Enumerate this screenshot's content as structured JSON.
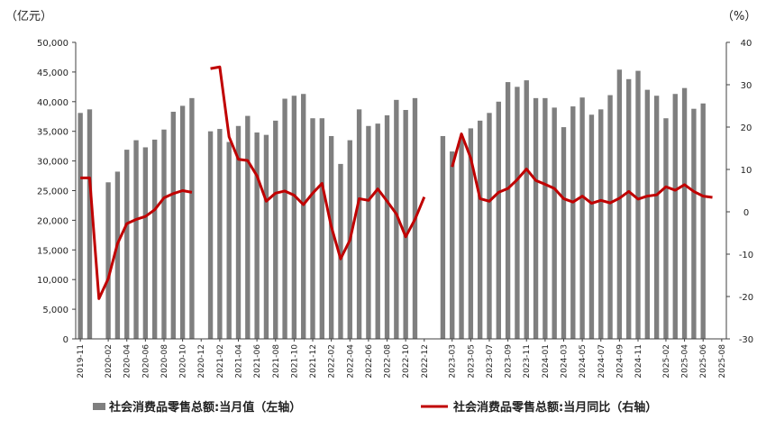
{
  "chart_data": {
    "type": "bar+line",
    "left_unit": "（亿元）",
    "right_unit": "（%）",
    "left_ylim": [
      0,
      50000
    ],
    "left_ticks": [
      "0",
      "5,000",
      "10,000",
      "15,000",
      "20,000",
      "25,000",
      "30,000",
      "35,000",
      "40,000",
      "45,000",
      "50,000"
    ],
    "left_tick_values": [
      0,
      5000,
      10000,
      15000,
      20000,
      25000,
      30000,
      35000,
      40000,
      45000,
      50000
    ],
    "right_ylim": [
      -30,
      40
    ],
    "right_ticks": [
      "-30",
      "-20",
      "-10",
      "0",
      "10",
      "20",
      "30",
      "40"
    ],
    "right_tick_values": [
      -30,
      -20,
      -10,
      0,
      10,
      20,
      30,
      40
    ],
    "categories": [
      "2019-11",
      "2019-12",
      "2020-01",
      "2020-02",
      "2020-03",
      "2020-04",
      "2020-05",
      "2020-06",
      "2020-07",
      "2020-08",
      "2020-09",
      "2020-10",
      "2020-11",
      "2020-12",
      "2021-01",
      "2021-02",
      "2021-03",
      "2021-04",
      "2021-05",
      "2021-06",
      "2021-07",
      "2021-08",
      "2021-09",
      "2021-10",
      "2021-11",
      "2021-12",
      "2022-01",
      "2022-02",
      "2022-03",
      "2022-04",
      "2022-05",
      "2022-06",
      "2022-07",
      "2022-08",
      "2022-09",
      "2022-10",
      "2022-11",
      "2022-12",
      "2023-01",
      "2023-02",
      "2023-03",
      "2023-04",
      "2023-05",
      "2023-06",
      "2023-07",
      "2023-08",
      "2023-09",
      "2023-10",
      "2023-11",
      "2023-12",
      "2024-01",
      "2024-02",
      "2024-03",
      "2024-04",
      "2024-05",
      "2024-06",
      "2024-07",
      "2024-08",
      "2024-09",
      "2024-10",
      "2024-11",
      "2024-12",
      "2025-01",
      "2025-02",
      "2025-03",
      "2025-04",
      "2025-05",
      "2025-06",
      "2025-07",
      "2025-08"
    ],
    "x_tick_labels": [
      "2019-11",
      "2020-02",
      "2020-04",
      "2020-06",
      "2020-08",
      "2020-10",
      "2020-12",
      "2021-02",
      "2021-04",
      "2021-06",
      "2021-08",
      "2021-10",
      "2021-12",
      "2022-02",
      "2022-04",
      "2022-06",
      "2022-08",
      "2022-10",
      "2022-12",
      "2023-03",
      "2023-05",
      "2023-07",
      "2023-09",
      "2023-11",
      "2024-01",
      "2024-03",
      "2024-05",
      "2024-07",
      "2024-09",
      "2024-11",
      "2025-02",
      "2025-04",
      "2025-06",
      "2025-08"
    ],
    "series": [
      {
        "name": "社会消费品零售总额:当月值（左轴）",
        "axis": "left",
        "kind": "bar",
        "color": "#7f7f7f",
        "values": [
          38100,
          38700,
          null,
          26400,
          28200,
          31900,
          33500,
          32300,
          33600,
          35300,
          38300,
          39300,
          40600,
          null,
          35000,
          35400,
          33200,
          35900,
          37600,
          34800,
          34400,
          36800,
          40500,
          41000,
          41300,
          37200,
          37200,
          34200,
          29500,
          33500,
          38700,
          35900,
          36300,
          37700,
          40300,
          38600,
          40600,
          null,
          null,
          34200,
          31600,
          33800,
          35500,
          36800,
          38100,
          40000,
          43300,
          42500,
          43600,
          40600,
          40600,
          39000,
          35700,
          39200,
          40700,
          37800,
          38700,
          41100,
          45400,
          43800,
          45200,
          42000,
          41000,
          37200,
          41300,
          42300,
          38800,
          39700,
          null,
          null
        ],
        "present_from": 0
      },
      {
        "name": "社会消费品零售总额:当月同比（右轴）",
        "axis": "right",
        "kind": "line",
        "color": "#c00000",
        "values": [
          8.0,
          8.0,
          -20.5,
          -15.8,
          -7.5,
          -2.8,
          -1.8,
          -1.1,
          0.5,
          3.3,
          4.3,
          5.0,
          4.6,
          null,
          33.8,
          34.2,
          17.7,
          12.4,
          12.1,
          8.5,
          2.5,
          4.4,
          4.9,
          3.9,
          1.7,
          4.4,
          6.7,
          -3.5,
          -11.1,
          -6.7,
          3.1,
          2.7,
          5.4,
          2.5,
          -0.5,
          -5.9,
          -1.8,
          3.5,
          null,
          null,
          10.6,
          18.4,
          12.7,
          3.1,
          2.5,
          4.6,
          5.5,
          7.6,
          10.1,
          7.4,
          6.5,
          5.5,
          3.1,
          2.3,
          3.7,
          2.0,
          2.7,
          2.1,
          3.2,
          4.8,
          3.0,
          3.7,
          4.0,
          5.9,
          5.1,
          6.4,
          4.8,
          3.7,
          3.4,
          null
        ]
      }
    ],
    "legend_position": "bottom",
    "grid": false
  }
}
